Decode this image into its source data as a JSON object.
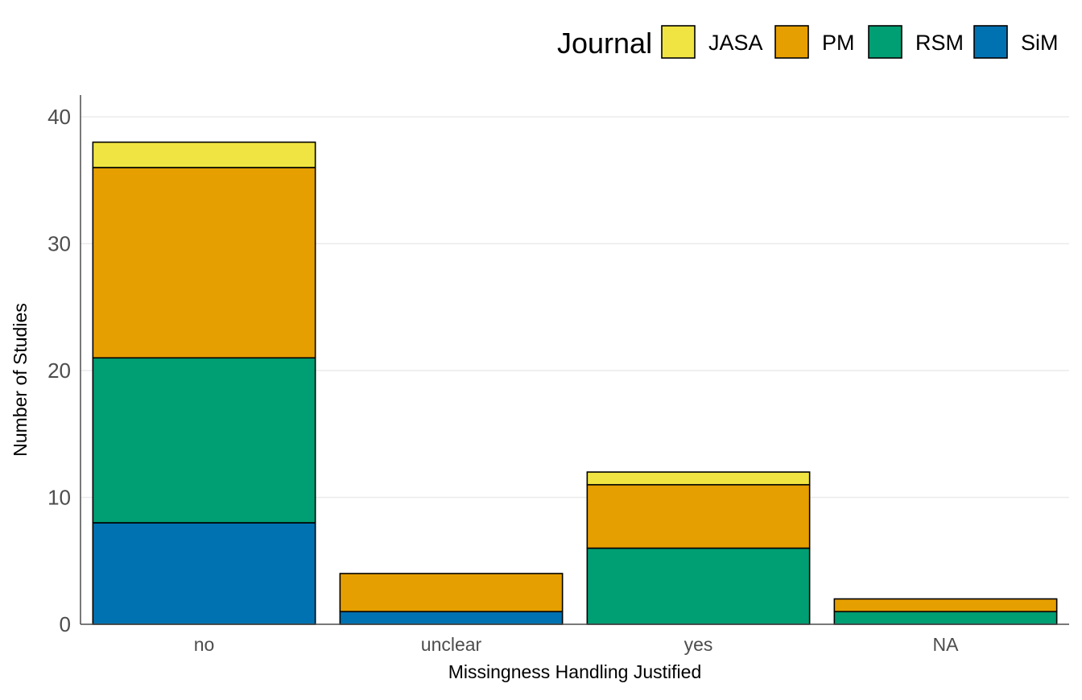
{
  "chart_data": {
    "type": "bar",
    "stacked": true,
    "categories": [
      "no",
      "unclear",
      "yes",
      "NA"
    ],
    "series": [
      {
        "name": "SiM",
        "color": "#0072B2",
        "values": [
          8,
          1,
          0,
          0
        ]
      },
      {
        "name": "RSM",
        "color": "#009E73",
        "values": [
          13,
          0,
          6,
          1
        ]
      },
      {
        "name": "PM",
        "color": "#E69F00",
        "values": [
          15,
          3,
          5,
          1
        ]
      },
      {
        "name": "JASA",
        "color": "#F0E442",
        "values": [
          2,
          0,
          1,
          0
        ]
      }
    ],
    "legend_order": [
      "JASA",
      "PM",
      "RSM",
      "SiM"
    ],
    "legend_title": "Journal",
    "legend_position": "top-right",
    "xlabel": "Missingness Handling Justified",
    "ylabel": "Number of Studies",
    "ylim": [
      0,
      42
    ],
    "yticks": [
      0,
      10,
      20,
      30,
      40
    ],
    "grid": "horizontal"
  }
}
